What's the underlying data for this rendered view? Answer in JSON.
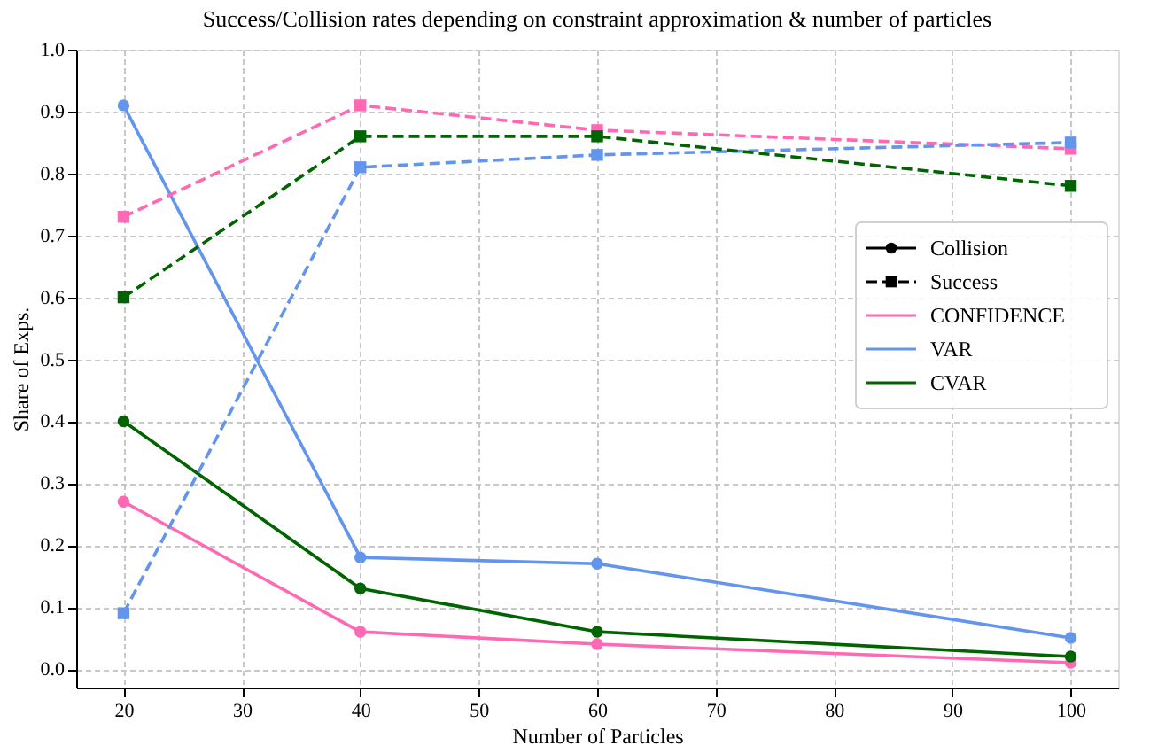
{
  "chart_data": {
    "type": "line",
    "title": "Success/Collision rates depending on constraint approximation & number of particles",
    "xlabel": "Number of Particles",
    "ylabel": "Share of Exps.",
    "x": [
      20,
      40,
      60,
      100
    ],
    "series": [
      {
        "name": "Collision",
        "color": "#000000",
        "marker": "circle",
        "line_style": "solid",
        "values": [
          null,
          null,
          null,
          null
        ]
      },
      {
        "name": "Success",
        "color": "#000000",
        "marker": "square",
        "line_style": "dashed",
        "values": [
          null,
          null,
          null,
          null
        ]
      },
      {
        "name": "CONFIDENCE",
        "color": "#ff69b4",
        "marker": "circle",
        "line_style": "solid",
        "values": [
          0.27,
          0.06,
          0.04,
          0.01
        ]
      },
      {
        "name": "VAR",
        "color": "#6495ed",
        "marker": "circle",
        "line_style": "solid",
        "values": [
          0.91,
          0.18,
          0.17,
          0.05
        ]
      },
      {
        "name": "CVAR",
        "color": "#006400",
        "marker": "circle",
        "line_style": "solid",
        "values": [
          0.4,
          0.13,
          0.06,
          0.02
        ]
      },
      {
        "color": "#ff69b4",
        "marker": "square",
        "line_style": "dashed",
        "values": [
          0.73,
          0.91,
          0.87,
          0.84
        ]
      },
      {
        "color": "#6495ed",
        "marker": "square",
        "line_style": "dashed",
        "values": [
          0.09,
          0.81,
          0.83,
          0.85
        ]
      },
      {
        "color": "#006400",
        "marker": "square",
        "line_style": "dashed",
        "values": [
          0.6,
          0.86,
          0.86,
          0.78
        ]
      }
    ],
    "xlim": [
      16,
      104
    ],
    "xticks": [
      20,
      30,
      40,
      50,
      60,
      70,
      80,
      90,
      100
    ],
    "ylim": [
      -0.03,
      1.0
    ],
    "yticks": [
      {
        "value": 0,
        "label": "0.0"
      },
      0.1,
      0.2,
      0.3,
      0.4,
      0.5,
      0.6,
      0.7,
      0.8,
      0.9,
      {
        "value": 1,
        "label": "1.0"
      }
    ],
    "grid": true,
    "legend": "right"
  }
}
